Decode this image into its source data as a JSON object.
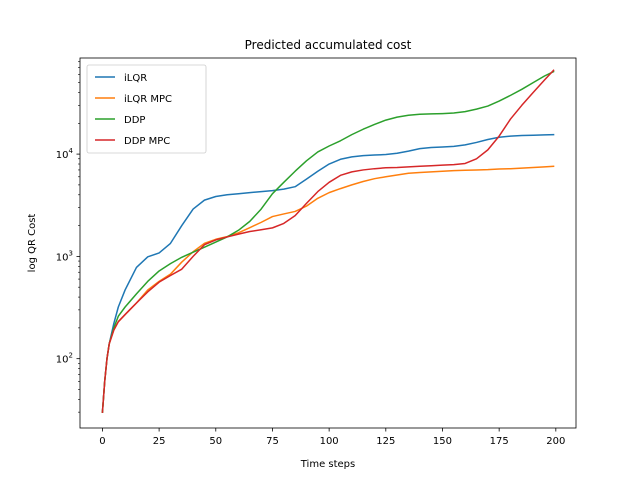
{
  "chart_data": {
    "type": "line",
    "title": "Predicted accumulated cost",
    "xlabel": "Time steps",
    "ylabel": "log QR Cost",
    "xlim": [
      -9.9,
      208.9
    ],
    "ylim": [
      21,
      87000
    ],
    "y_scale": "log",
    "x_ticks": [
      0,
      25,
      50,
      75,
      100,
      125,
      150,
      175,
      200
    ],
    "y_ticks": [
      {
        "value": 100,
        "base": "10",
        "exp": "2"
      },
      {
        "value": 1000,
        "base": "10",
        "exp": "3"
      },
      {
        "value": 10000,
        "base": "10",
        "exp": "4"
      }
    ],
    "legend_position": "upper-left",
    "x": [
      0,
      1,
      2,
      3,
      5,
      7,
      10,
      15,
      20,
      25,
      30,
      35,
      40,
      45,
      50,
      55,
      60,
      65,
      70,
      75,
      80,
      85,
      90,
      95,
      100,
      105,
      110,
      115,
      120,
      125,
      130,
      135,
      140,
      145,
      150,
      155,
      160,
      165,
      170,
      175,
      180,
      185,
      190,
      195,
      199
    ],
    "series": [
      {
        "name": "iLQR",
        "color": "#1f77b4",
        "values": [
          30,
          60,
          100,
          140,
          220,
          320,
          470,
          780,
          990,
          1080,
          1340,
          2000,
          2900,
          3550,
          3850,
          4000,
          4100,
          4200,
          4300,
          4400,
          4550,
          4800,
          5700,
          6800,
          8000,
          8900,
          9400,
          9650,
          9800,
          9900,
          10200,
          10700,
          11300,
          11600,
          11750,
          11900,
          12300,
          13000,
          13900,
          14600,
          15000,
          15200,
          15300,
          15400,
          15500
        ]
      },
      {
        "name": "iLQR MPC",
        "color": "#ff7f0e",
        "values": [
          30,
          60,
          100,
          140,
          190,
          230,
          270,
          350,
          470,
          570,
          670,
          880,
          1110,
          1340,
          1470,
          1560,
          1700,
          1910,
          2150,
          2450,
          2600,
          2750,
          3100,
          3700,
          4200,
          4600,
          5000,
          5400,
          5750,
          6000,
          6250,
          6500,
          6600,
          6700,
          6800,
          6900,
          6950,
          7000,
          7050,
          7150,
          7200,
          7300,
          7400,
          7500,
          7600
        ]
      },
      {
        "name": "DDP",
        "color": "#2ca02c",
        "values": [
          30,
          60,
          100,
          140,
          200,
          260,
          320,
          430,
          570,
          720,
          850,
          980,
          1100,
          1230,
          1380,
          1550,
          1800,
          2200,
          2900,
          4100,
          5300,
          6800,
          8600,
          10500,
          12000,
          13500,
          15500,
          17500,
          19500,
          21500,
          23000,
          24000,
          24500,
          24700,
          24900,
          25200,
          26000,
          27500,
          29500,
          33000,
          37500,
          43000,
          50000,
          58000,
          64000
        ]
      },
      {
        "name": "DDP MPC",
        "color": "#d62728",
        "values": [
          30,
          60,
          100,
          140,
          190,
          230,
          270,
          350,
          450,
          560,
          650,
          750,
          1000,
          1300,
          1450,
          1550,
          1650,
          1750,
          1820,
          1900,
          2100,
          2500,
          3300,
          4300,
          5300,
          6200,
          6700,
          7000,
          7200,
          7350,
          7400,
          7500,
          7600,
          7700,
          7800,
          7900,
          8100,
          9000,
          11000,
          15000,
          22000,
          30000,
          40000,
          53000,
          66000
        ]
      }
    ]
  }
}
